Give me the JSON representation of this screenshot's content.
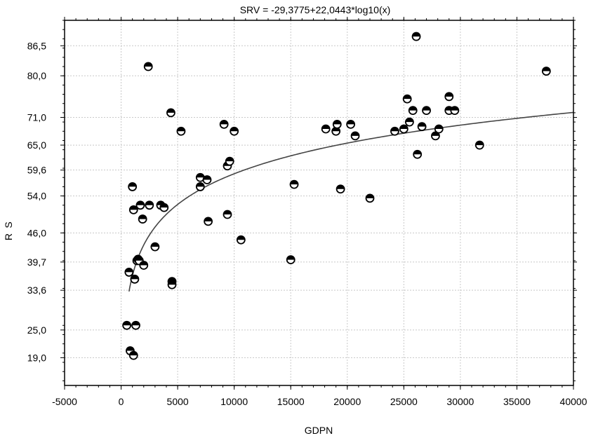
{
  "chart_data": {
    "type": "scatter",
    "title": "SRV = -29,3775+22,0443*log10(x)",
    "xlabel": "GDPN",
    "ylabel_lines": [
      "S",
      "R"
    ],
    "xlim": [
      -5000,
      40000
    ],
    "ylim": [
      13,
      92
    ],
    "x_ticks": [
      -5000,
      0,
      5000,
      10000,
      15000,
      20000,
      25000,
      30000,
      35000,
      40000
    ],
    "x_tick_labels": [
      "-5000",
      "0",
      "5000",
      "10000",
      "15000",
      "20000",
      "25000",
      "30000",
      "35000",
      "40000"
    ],
    "y_ticks": [
      19.0,
      25.0,
      33.6,
      39.7,
      46.0,
      54.0,
      59.6,
      65.0,
      71.0,
      80.0,
      86.5
    ],
    "y_tick_labels": [
      "19,0",
      "25,0",
      "33,6",
      "39,7",
      "46,0",
      "54,0",
      "59,6",
      "65,0",
      "71,0",
      "80,0",
      "86,5"
    ],
    "grid": true,
    "fit": {
      "intercept": -29.3775,
      "slope": 22.0443,
      "x_from": 700,
      "x_to": 40000
    },
    "points": [
      {
        "x": 500,
        "y": 26
      },
      {
        "x": 800,
        "y": 20.5
      },
      {
        "x": 1100,
        "y": 19.5
      },
      {
        "x": 1300,
        "y": 26
      },
      {
        "x": 700,
        "y": 37.5
      },
      {
        "x": 1200,
        "y": 36
      },
      {
        "x": 1400,
        "y": 40
      },
      {
        "x": 1500,
        "y": 40.3
      },
      {
        "x": 1600,
        "y": 40
      },
      {
        "x": 2000,
        "y": 39
      },
      {
        "x": 1000,
        "y": 56
      },
      {
        "x": 1100,
        "y": 51
      },
      {
        "x": 1700,
        "y": 52
      },
      {
        "x": 1900,
        "y": 49
      },
      {
        "x": 2500,
        "y": 52
      },
      {
        "x": 2400,
        "y": 82
      },
      {
        "x": 3000,
        "y": 43
      },
      {
        "x": 3500,
        "y": 52
      },
      {
        "x": 3800,
        "y": 51.5
      },
      {
        "x": 4400,
        "y": 72
      },
      {
        "x": 4500,
        "y": 35.5
      },
      {
        "x": 4500,
        "y": 34.8
      },
      {
        "x": 5300,
        "y": 68
      },
      {
        "x": 7000,
        "y": 58
      },
      {
        "x": 7000,
        "y": 56
      },
      {
        "x": 7600,
        "y": 57.5
      },
      {
        "x": 7700,
        "y": 48.5
      },
      {
        "x": 9100,
        "y": 69.5
      },
      {
        "x": 9400,
        "y": 60.5
      },
      {
        "x": 9600,
        "y": 61.5
      },
      {
        "x": 9400,
        "y": 50
      },
      {
        "x": 10000,
        "y": 68
      },
      {
        "x": 10600,
        "y": 44.5
      },
      {
        "x": 15000,
        "y": 40.2
      },
      {
        "x": 15300,
        "y": 56.5
      },
      {
        "x": 18100,
        "y": 68.5
      },
      {
        "x": 19000,
        "y": 68
      },
      {
        "x": 19100,
        "y": 69.5
      },
      {
        "x": 19400,
        "y": 55.5
      },
      {
        "x": 20300,
        "y": 69.5
      },
      {
        "x": 20700,
        "y": 67
      },
      {
        "x": 22000,
        "y": 53.5
      },
      {
        "x": 24200,
        "y": 68
      },
      {
        "x": 25000,
        "y": 68.5
      },
      {
        "x": 25300,
        "y": 75
      },
      {
        "x": 25500,
        "y": 70
      },
      {
        "x": 25800,
        "y": 72.5
      },
      {
        "x": 26100,
        "y": 88.5
      },
      {
        "x": 26200,
        "y": 63
      },
      {
        "x": 26600,
        "y": 69
      },
      {
        "x": 27000,
        "y": 72.5
      },
      {
        "x": 27800,
        "y": 67
      },
      {
        "x": 28100,
        "y": 68.5
      },
      {
        "x": 29000,
        "y": 75.5
      },
      {
        "x": 29000,
        "y": 72.5
      },
      {
        "x": 29500,
        "y": 72.5
      },
      {
        "x": 31700,
        "y": 65
      },
      {
        "x": 37600,
        "y": 81
      }
    ]
  }
}
